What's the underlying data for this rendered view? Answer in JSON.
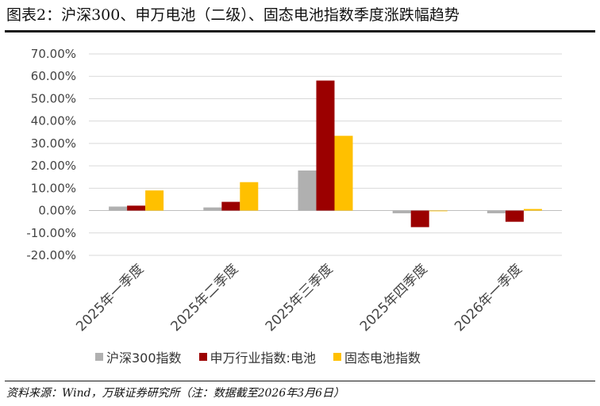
{
  "figure": {
    "title": "图表2：沪深300、申万电池（二级）、固态电池指数季度涨跌幅趋势",
    "source": "资料来源：Wind，万联证券研究所（注：数据截至2026年3月6日）"
  },
  "chart_data": {
    "type": "bar",
    "categories": [
      "2025年一季度",
      "2025年二季度",
      "2025年三季度",
      "2025年四季度",
      "2026年一季度"
    ],
    "series": [
      {
        "name": "沪深300指数",
        "color": "#b0b0b0",
        "values": [
          1.8,
          1.4,
          17.9,
          -1.2,
          -1.2
        ]
      },
      {
        "name": "申万行业指数:电池",
        "color": "#9b0000",
        "values": [
          2.2,
          3.9,
          58.1,
          -7.4,
          -5.0
        ]
      },
      {
        "name": "固态电池指数",
        "color": "#ffc000",
        "values": [
          9.0,
          12.7,
          33.4,
          -0.3,
          0.7
        ]
      }
    ],
    "yticks": [
      "70.00%",
      "60.00%",
      "50.00%",
      "40.00%",
      "30.00%",
      "20.00%",
      "10.00%",
      "0.00%",
      "-10.00%",
      "-20.00%"
    ],
    "ylim": [
      -20,
      70
    ],
    "grid": true,
    "legend_position": "bottom"
  }
}
